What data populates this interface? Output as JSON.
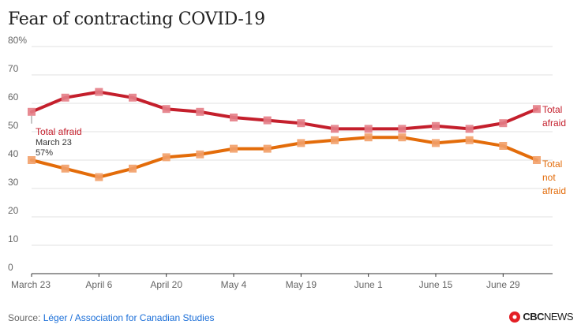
{
  "title": "Fear of contracting COVID-19",
  "footer": {
    "source_prefix": "Source: ",
    "source_text": "Léger / Association for Canadian Studies"
  },
  "brand": {
    "cbc": "CBC",
    "news": "NEWS"
  },
  "chart_data": {
    "type": "line",
    "title": "Fear of contracting COVID-19",
    "xlabel": "",
    "ylabel": "",
    "ylim": [
      0,
      80
    ],
    "y_ticks": [
      0,
      10,
      20,
      30,
      40,
      50,
      60,
      70,
      80
    ],
    "y_tick_labels": [
      "0",
      "10",
      "20",
      "30",
      "40",
      "50",
      "60",
      "70",
      "80%"
    ],
    "x_tick_labels": [
      "March 23",
      "April 6",
      "April 20",
      "May 4",
      "May 19",
      "June 1",
      "June 15",
      "June 29"
    ],
    "x_tick_indices": [
      0,
      2,
      4,
      6,
      8,
      10,
      12,
      14
    ],
    "series": [
      {
        "name": "Total afraid",
        "end_label": [
          "Total",
          "afraid"
        ],
        "color": "#c41f2c",
        "marker_color": "#e57e87",
        "values": [
          57,
          62,
          64,
          62,
          58,
          57,
          55,
          54,
          53,
          51,
          51,
          51,
          52,
          51,
          53,
          58
        ]
      },
      {
        "name": "Total not afraid",
        "end_label": [
          "Total",
          "not",
          "afraid"
        ],
        "color": "#e36c0a",
        "marker_color": "#f2a06a",
        "values": [
          40,
          37,
          34,
          37,
          41,
          42,
          44,
          44,
          46,
          47,
          48,
          48,
          46,
          47,
          45,
          40
        ]
      }
    ],
    "annotation": {
      "series": "Total afraid",
      "point_index": 0,
      "title": "Total afraid",
      "line1": "March 23",
      "line2": "57%"
    },
    "grid": true
  }
}
